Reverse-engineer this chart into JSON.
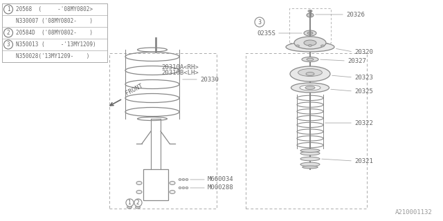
{
  "bg_color": "#ffffff",
  "line_color": "#888888",
  "text_color": "#666666",
  "fs": 6.5,
  "watermark": "A210001132",
  "legend_rows": [
    [
      "1",
      "20568  (     -'08MY0802>"
    ],
    [
      "",
      "N330007 ('08MY0802-    )"
    ],
    [
      "2",
      "20584D  ('08MY0802-    )"
    ],
    [
      "3",
      "N350013 (     -'13MY1209)"
    ],
    [
      "",
      "N350028('13MY1209-    )"
    ]
  ]
}
